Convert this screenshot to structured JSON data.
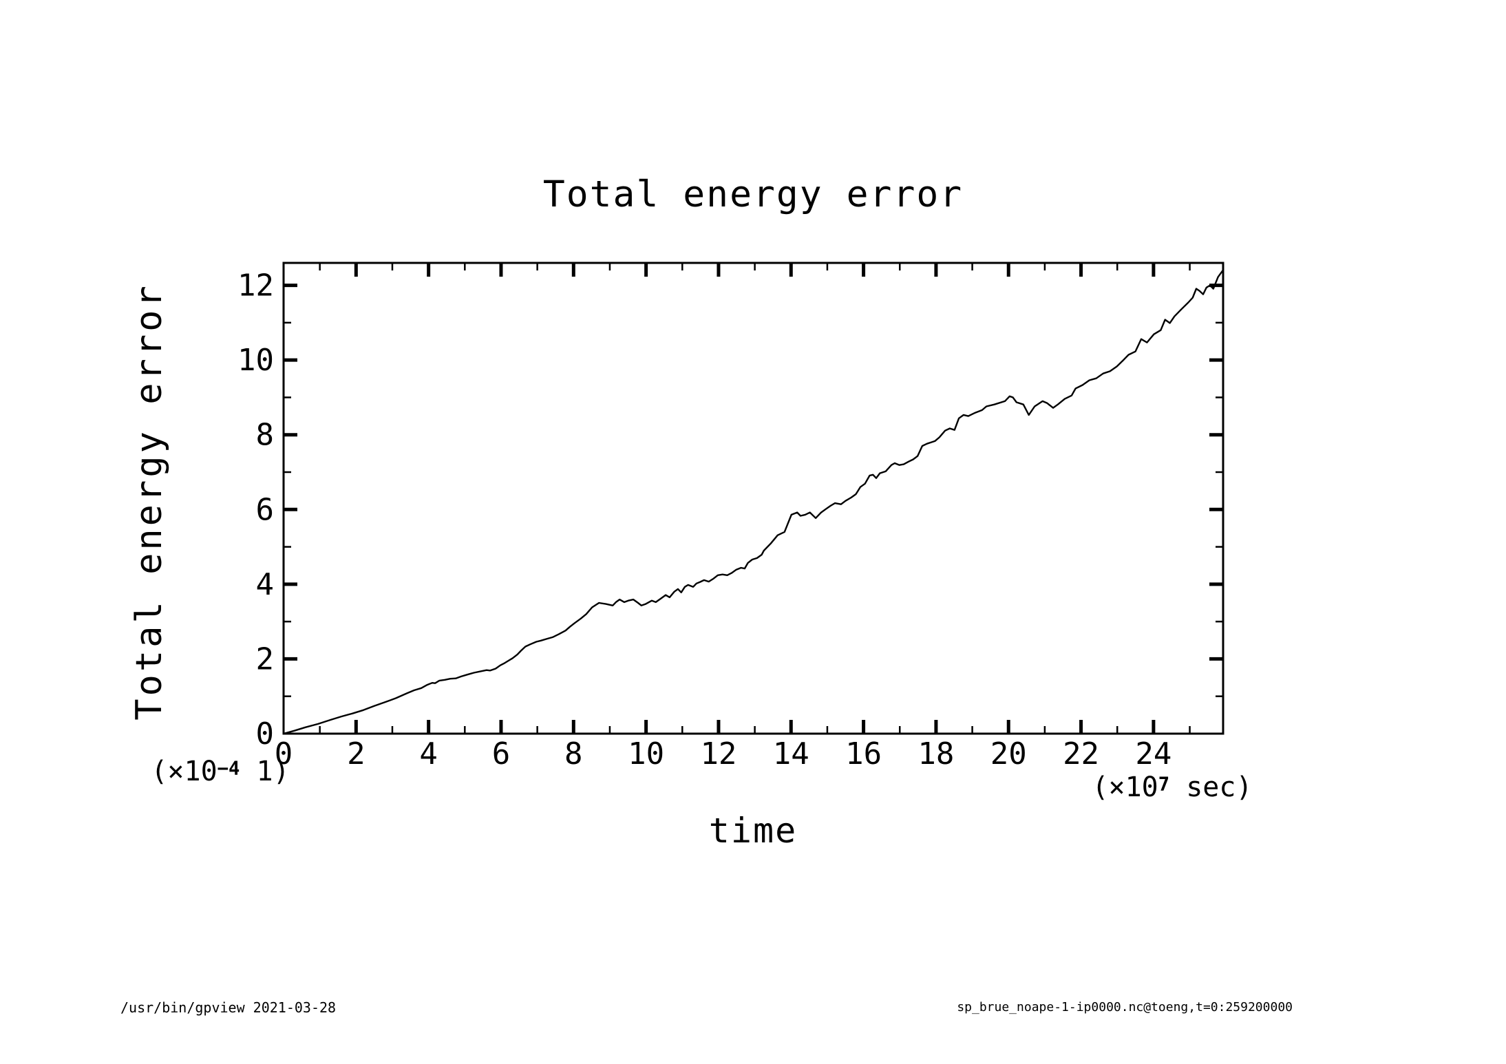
{
  "page": {
    "background": "#ffffff",
    "foreground": "#000000"
  },
  "header": {
    "title": "Total energy error"
  },
  "axes": {
    "x": {
      "label": "time",
      "unit_base": "(×10",
      "unit_exp": "7",
      "unit_rest": " sec)",
      "ticks": [
        0,
        2,
        4,
        6,
        8,
        10,
        12,
        14,
        16,
        18,
        20,
        22,
        24
      ],
      "minor_ticks": [
        1,
        3,
        5,
        7,
        9,
        11,
        13,
        15,
        17,
        19,
        21,
        23,
        25
      ],
      "range": [
        0,
        25.92
      ]
    },
    "y": {
      "label": "Total energy error",
      "unit_base": "(×10",
      "unit_exp": "−4",
      "unit_rest": " 1)",
      "ticks": [
        0,
        2,
        4,
        6,
        8,
        10,
        12
      ],
      "minor_ticks": [
        1,
        3,
        5,
        7,
        9,
        11
      ],
      "range": [
        0,
        12.6
      ]
    }
  },
  "footer": {
    "left": "/usr/bin/gpview  2021-03-28",
    "right": "sp_brue_noape-1-ip0000.nc@toeng,t=0:259200000"
  },
  "chart_data": {
    "type": "line",
    "title": "Total energy error",
    "xlabel": "time (×10^7 sec)",
    "ylabel": "Total energy error (×10^-4 1)",
    "xlim": [
      0,
      25.92
    ],
    "ylim": [
      0,
      12.6
    ],
    "grid": false,
    "legend": "none",
    "line_color": "#000000",
    "series": [
      {
        "name": "total energy error",
        "points": [
          [
            0.0,
            0.0
          ],
          [
            0.3,
            0.08
          ],
          [
            0.6,
            0.17
          ],
          [
            0.95,
            0.26
          ],
          [
            1.3,
            0.37
          ],
          [
            1.6,
            0.46
          ],
          [
            1.9,
            0.54
          ],
          [
            2.2,
            0.63
          ],
          [
            2.5,
            0.74
          ],
          [
            2.85,
            0.86
          ],
          [
            3.1,
            0.95
          ],
          [
            3.4,
            1.08
          ],
          [
            3.6,
            1.16
          ],
          [
            3.8,
            1.22
          ],
          [
            3.95,
            1.3
          ],
          [
            4.1,
            1.36
          ],
          [
            4.18,
            1.35
          ],
          [
            4.3,
            1.42
          ],
          [
            4.45,
            1.44
          ],
          [
            4.6,
            1.47
          ],
          [
            4.75,
            1.48
          ],
          [
            4.9,
            1.53
          ],
          [
            5.07,
            1.58
          ],
          [
            5.25,
            1.63
          ],
          [
            5.45,
            1.67
          ],
          [
            5.6,
            1.7
          ],
          [
            5.7,
            1.69
          ],
          [
            5.85,
            1.74
          ],
          [
            5.98,
            1.83
          ],
          [
            6.1,
            1.89
          ],
          [
            6.2,
            1.95
          ],
          [
            6.32,
            2.02
          ],
          [
            6.45,
            2.12
          ],
          [
            6.55,
            2.22
          ],
          [
            6.67,
            2.33
          ],
          [
            6.8,
            2.39
          ],
          [
            6.97,
            2.46
          ],
          [
            7.1,
            2.49
          ],
          [
            7.27,
            2.54
          ],
          [
            7.42,
            2.58
          ],
          [
            7.59,
            2.66
          ],
          [
            7.78,
            2.76
          ],
          [
            7.9,
            2.86
          ],
          [
            8.03,
            2.96
          ],
          [
            8.2,
            3.08
          ],
          [
            8.35,
            3.2
          ],
          [
            8.51,
            3.38
          ],
          [
            8.7,
            3.5
          ],
          [
            8.89,
            3.47
          ],
          [
            9.08,
            3.43
          ],
          [
            9.17,
            3.52
          ],
          [
            9.27,
            3.59
          ],
          [
            9.4,
            3.52
          ],
          [
            9.51,
            3.56
          ],
          [
            9.65,
            3.59
          ],
          [
            9.78,
            3.5
          ],
          [
            9.87,
            3.43
          ],
          [
            9.99,
            3.47
          ],
          [
            10.16,
            3.56
          ],
          [
            10.27,
            3.52
          ],
          [
            10.4,
            3.61
          ],
          [
            10.54,
            3.71
          ],
          [
            10.65,
            3.65
          ],
          [
            10.78,
            3.8
          ],
          [
            10.88,
            3.87
          ],
          [
            10.97,
            3.78
          ],
          [
            11.07,
            3.93
          ],
          [
            11.16,
            3.98
          ],
          [
            11.3,
            3.93
          ],
          [
            11.39,
            4.02
          ],
          [
            11.49,
            4.06
          ],
          [
            11.6,
            4.11
          ],
          [
            11.73,
            4.07
          ],
          [
            11.86,
            4.15
          ],
          [
            11.98,
            4.24
          ],
          [
            12.11,
            4.26
          ],
          [
            12.24,
            4.24
          ],
          [
            12.36,
            4.3
          ],
          [
            12.49,
            4.39
          ],
          [
            12.62,
            4.44
          ],
          [
            12.72,
            4.42
          ],
          [
            12.81,
            4.57
          ],
          [
            12.93,
            4.66
          ],
          [
            13.06,
            4.7
          ],
          [
            13.19,
            4.79
          ],
          [
            13.25,
            4.9
          ],
          [
            13.44,
            5.09
          ],
          [
            13.63,
            5.31
          ],
          [
            13.82,
            5.4
          ],
          [
            14.01,
            5.86
          ],
          [
            14.17,
            5.92
          ],
          [
            14.26,
            5.83
          ],
          [
            14.39,
            5.86
          ],
          [
            14.52,
            5.92
          ],
          [
            14.68,
            5.77
          ],
          [
            14.83,
            5.92
          ],
          [
            14.96,
            6.01
          ],
          [
            15.09,
            6.1
          ],
          [
            15.21,
            6.17
          ],
          [
            15.38,
            6.14
          ],
          [
            15.5,
            6.23
          ],
          [
            15.66,
            6.32
          ],
          [
            15.79,
            6.41
          ],
          [
            15.91,
            6.6
          ],
          [
            16.04,
            6.69
          ],
          [
            16.17,
            6.91
          ],
          [
            16.26,
            6.93
          ],
          [
            16.35,
            6.84
          ],
          [
            16.45,
            6.97
          ],
          [
            16.61,
            7.02
          ],
          [
            16.77,
            7.19
          ],
          [
            16.86,
            7.24
          ],
          [
            16.99,
            7.19
          ],
          [
            17.11,
            7.21
          ],
          [
            17.24,
            7.28
          ],
          [
            17.37,
            7.34
          ],
          [
            17.49,
            7.43
          ],
          [
            17.62,
            7.7
          ],
          [
            17.75,
            7.76
          ],
          [
            17.87,
            7.8
          ],
          [
            17.97,
            7.83
          ],
          [
            18.09,
            7.93
          ],
          [
            18.25,
            8.11
          ],
          [
            18.38,
            8.17
          ],
          [
            18.51,
            8.13
          ],
          [
            18.63,
            8.44
          ],
          [
            18.76,
            8.53
          ],
          [
            18.89,
            8.5
          ],
          [
            19.08,
            8.59
          ],
          [
            19.27,
            8.66
          ],
          [
            19.39,
            8.76
          ],
          [
            19.61,
            8.81
          ],
          [
            19.9,
            8.9
          ],
          [
            20.03,
            9.03
          ],
          [
            20.12,
            9.0
          ],
          [
            20.22,
            8.87
          ],
          [
            20.41,
            8.81
          ],
          [
            20.56,
            8.53
          ],
          [
            20.72,
            8.76
          ],
          [
            20.94,
            8.9
          ],
          [
            21.06,
            8.85
          ],
          [
            21.23,
            8.72
          ],
          [
            21.36,
            8.81
          ],
          [
            21.55,
            8.96
          ],
          [
            21.74,
            9.05
          ],
          [
            21.85,
            9.24
          ],
          [
            22.04,
            9.33
          ],
          [
            22.23,
            9.46
          ],
          [
            22.42,
            9.51
          ],
          [
            22.61,
            9.64
          ],
          [
            22.8,
            9.7
          ],
          [
            22.99,
            9.83
          ],
          [
            23.18,
            10.01
          ],
          [
            23.31,
            10.14
          ],
          [
            23.5,
            10.23
          ],
          [
            23.66,
            10.56
          ],
          [
            23.82,
            10.47
          ],
          [
            24.01,
            10.69
          ],
          [
            24.2,
            10.8
          ],
          [
            24.32,
            11.08
          ],
          [
            24.45,
            10.99
          ],
          [
            24.58,
            11.17
          ],
          [
            24.77,
            11.36
          ],
          [
            24.96,
            11.54
          ],
          [
            25.08,
            11.67
          ],
          [
            25.18,
            11.91
          ],
          [
            25.27,
            11.85
          ],
          [
            25.37,
            11.76
          ],
          [
            25.46,
            11.94
          ],
          [
            25.56,
            12.0
          ],
          [
            25.65,
            11.91
          ],
          [
            25.78,
            12.22
          ],
          [
            25.92,
            12.41
          ]
        ]
      }
    ]
  }
}
